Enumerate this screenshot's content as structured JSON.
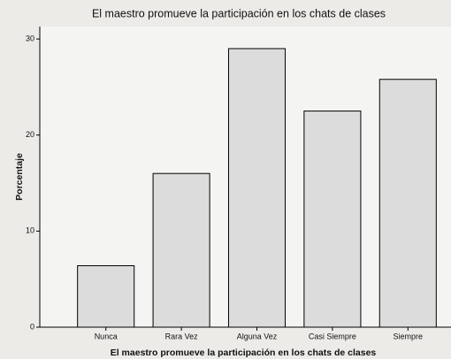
{
  "chart_data": {
    "type": "bar",
    "title": "El maestro promueve la participación en los chats de clases",
    "x_label": "El maestro promueve la participación en los chats de clases",
    "y_label": "Porcentaje",
    "categories": [
      "Nunca",
      "Rara Vez",
      "Alguna Vez",
      "Casi Siempre",
      "Siempre"
    ],
    "values": [
      6.4,
      16.0,
      29.0,
      22.5,
      25.8
    ],
    "color": "#dcdcdc",
    "ylim": [
      0,
      31.3
    ],
    "yticks": [
      0,
      10,
      20,
      30
    ],
    "grid": false
  }
}
